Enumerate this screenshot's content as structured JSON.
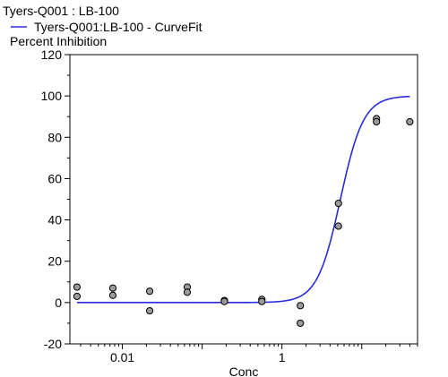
{
  "chart_data": {
    "type": "scatter",
    "title": "Tyers-Q001  :  LB-100",
    "legend": {
      "position": "top-left",
      "entries": [
        {
          "label": "Tyers-Q001:LB-100 - CurveFit",
          "color": "#2b2bd9",
          "kind": "line"
        }
      ]
    },
    "ylabel": "Percent Inhibition",
    "xlabel": "Conc",
    "x_scale": "log",
    "xlim": [
      0.0022,
      50
    ],
    "ylim": [
      -20,
      120
    ],
    "x_ticks": [
      {
        "value": 0.01,
        "label": "0.01"
      },
      {
        "value": 1,
        "label": "1"
      }
    ],
    "y_ticks": [
      {
        "value": -20,
        "label": "-20"
      },
      {
        "value": 0,
        "label": "0"
      },
      {
        "value": 20,
        "label": "20"
      },
      {
        "value": 40,
        "label": "40"
      },
      {
        "value": 60,
        "label": "60"
      },
      {
        "value": 80,
        "label": "80"
      },
      {
        "value": 100,
        "label": "100"
      },
      {
        "value": 120,
        "label": "120"
      }
    ],
    "grid": false,
    "points": {
      "marker_fill": "#9a9a9a",
      "marker_stroke": "#000000",
      "x": [
        0.0027,
        0.0027,
        0.0076,
        0.0076,
        0.022,
        0.022,
        0.065,
        0.065,
        0.19,
        0.19,
        0.56,
        0.56,
        1.7,
        1.7,
        5.1,
        5.1,
        15.3,
        15.3,
        40
      ],
      "y": [
        7.5,
        3.0,
        7.0,
        3.5,
        5.5,
        -4.0,
        7.5,
        5.0,
        1.0,
        0.5,
        1.5,
        0.5,
        -1.5,
        -10.0,
        48.0,
        37.0,
        89.0,
        87.5,
        87.5
      ]
    },
    "curve": {
      "name": "Tyers-Q001:LB-100 - CurveFit",
      "color": "#2b2bd9",
      "model": "4PL",
      "bottom": 0,
      "top": 100,
      "ec50": 5.4,
      "hill": 3.0,
      "x_range": [
        0.0027,
        40
      ]
    }
  }
}
